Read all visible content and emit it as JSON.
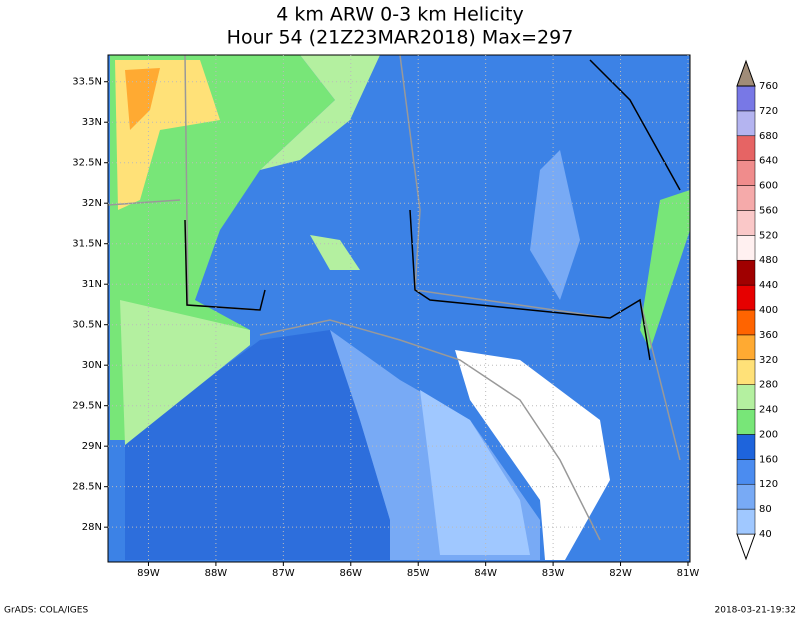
{
  "title": [
    "4 km ARW 0-3 km Helicity",
    "Hour 54 (21Z23MAR2018) Max=297"
  ],
  "map": {
    "xlim": [
      -89.6,
      -80.97
    ],
    "ylim": [
      27.57,
      33.83
    ],
    "xticks": [
      {
        "value": -89,
        "label": "89W"
      },
      {
        "value": -88,
        "label": "88W"
      },
      {
        "value": -87,
        "label": "87W"
      },
      {
        "value": -86,
        "label": "86W"
      },
      {
        "value": -85,
        "label": "85W"
      },
      {
        "value": -84,
        "label": "84W"
      },
      {
        "value": -83,
        "label": "83W"
      },
      {
        "value": -82,
        "label": "82W"
      },
      {
        "value": -81,
        "label": "81W"
      }
    ],
    "yticks": [
      {
        "value": 28,
        "label": "28N"
      },
      {
        "value": 28.5,
        "label": "28.5N"
      },
      {
        "value": 29,
        "label": "29N"
      },
      {
        "value": 29.5,
        "label": "29.5N"
      },
      {
        "value": 30,
        "label": "30N"
      },
      {
        "value": 30.5,
        "label": "30.5N"
      },
      {
        "value": 31,
        "label": "31N"
      },
      {
        "value": 31.5,
        "label": "31.5N"
      },
      {
        "value": 32,
        "label": "32N"
      },
      {
        "value": 32.5,
        "label": "32.5N"
      },
      {
        "value": 33,
        "label": "33N"
      },
      {
        "value": 33.5,
        "label": "33.5N"
      }
    ]
  },
  "colorbar": {
    "levels": [
      40,
      80,
      120,
      160,
      200,
      240,
      280,
      320,
      360,
      400,
      440,
      480,
      520,
      560,
      600,
      640,
      680,
      720,
      760
    ],
    "colors": [
      "#ffffff",
      "#a0c8ff",
      "#78aaf5",
      "#4b8cf0",
      "#1e64dc",
      "#78e678",
      "#b4f0a0",
      "#ffe178",
      "#ffaa32",
      "#ff6400",
      "#e60000",
      "#a00000",
      "#fff0f0",
      "#fac8c8",
      "#f5aaaa",
      "#f08c8c",
      "#e66464",
      "#b4b4f0",
      "#7878e6",
      "#3c3cc8",
      "#a08c78"
    ]
  },
  "footer_left": "GrADS: COLA/IGES",
  "footer_right": "2018-03-21-19:32"
}
